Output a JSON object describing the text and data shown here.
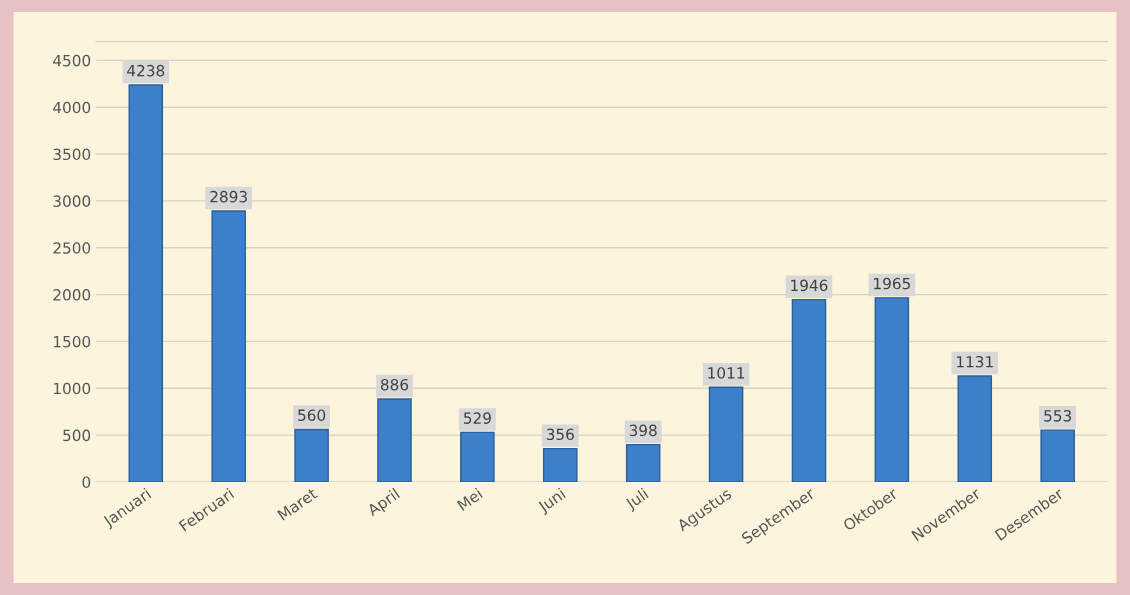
{
  "chart_data": {
    "type": "bar",
    "categories": [
      "Januari",
      "Februari",
      "Maret",
      "April",
      "Mei",
      "Juni",
      "Juli",
      "Agustus",
      "September",
      "Oktober",
      "November",
      "Desember"
    ],
    "values": [
      4238,
      2893,
      560,
      886,
      529,
      356,
      398,
      1011,
      1946,
      1965,
      1131,
      553
    ],
    "color": "#3b80c9",
    "ylim": [
      0,
      4700
    ],
    "yticks": [
      0,
      500,
      1000,
      1500,
      2000,
      2500,
      3000,
      3500,
      4000,
      4500
    ],
    "grid": "y",
    "data_labels": true,
    "legend": false
  }
}
